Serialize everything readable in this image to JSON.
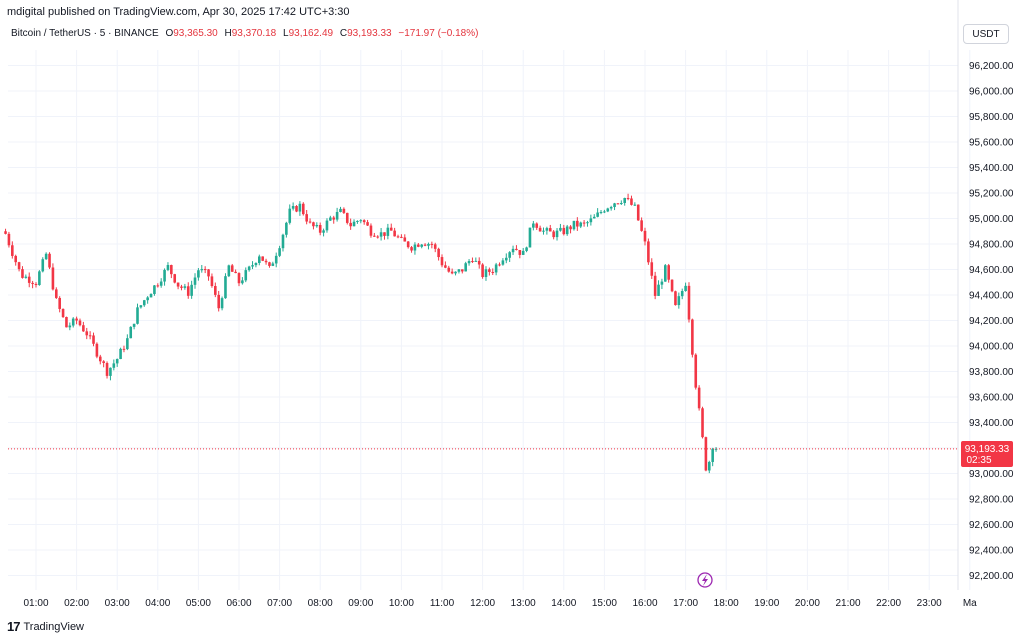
{
  "header": {
    "published_text": "mdigital published on TradingView.com, Apr 30, 2025 17:42 UTC+3:30"
  },
  "symbol": {
    "name": "Bitcoin / TetherUS · 5 · BINANCE",
    "open_label": "O",
    "open": "93,365.30",
    "high_label": "H",
    "high": "93,370.18",
    "low_label": "L",
    "low": "93,162.49",
    "close_label": "C",
    "close": "93,193.33",
    "change": "−171.97 (−0.18%)"
  },
  "currency_button": "USDT",
  "price_badge": {
    "price": "93,193.33",
    "countdown": "02:35",
    "color": "#f23645"
  },
  "footer": {
    "brand": "TradingView",
    "logo_icon": "tradingview-logo-icon"
  },
  "colors": {
    "up": "#22ab94",
    "down": "#f23645",
    "grid": "#f0f3fa"
  },
  "chart_data": {
    "type": "candlestick",
    "title": "",
    "xlabel": "",
    "ylabel": "",
    "ylim": [
      92100,
      96300
    ],
    "y_ticks": [
      96200,
      96000,
      95800,
      95600,
      95400,
      95200,
      95000,
      94800,
      94600,
      94400,
      94200,
      94000,
      93800,
      93600,
      93400,
      93200,
      93000,
      92800,
      92600,
      92400,
      92200
    ],
    "y_tick_labels": [
      "96,200.00",
      "96,000.00",
      "95,800.00",
      "95,600.00",
      "95,400.00",
      "95,200.00",
      "95,000.00",
      "94,800.00",
      "94,600.00",
      "94,400.00",
      "94,200.00",
      "94,000.00",
      "93,800.00",
      "93,600.00",
      "93,400.00",
      "93,200.00",
      "93,000.00",
      "92,800.00",
      "92,600.00",
      "92,400.00",
      "92,200.00"
    ],
    "x_tick_labels": [
      "01:00",
      "02:00",
      "03:00",
      "04:00",
      "05:00",
      "06:00",
      "07:00",
      "08:00",
      "09:00",
      "10:00",
      "11:00",
      "12:00",
      "13:00",
      "14:00",
      "15:00",
      "16:00",
      "17:00",
      "18:00",
      "19:00",
      "20:00",
      "21:00",
      "22:00",
      "23:00",
      "Ma"
    ],
    "x_tick_hours": [
      1,
      2,
      3,
      4,
      5,
      6,
      7,
      8,
      9,
      10,
      11,
      12,
      13,
      14,
      15,
      16,
      17,
      18,
      19,
      20,
      21,
      22,
      23,
      24
    ],
    "last_price": 93193.33,
    "closes": [
      {
        "h": 0.25,
        "c": 94880
      },
      {
        "h": 0.62,
        "c": 94560
      },
      {
        "h": 1.0,
        "c": 94500
      },
      {
        "h": 1.25,
        "c": 94720
      },
      {
        "h": 1.5,
        "c": 94350
      },
      {
        "h": 1.75,
        "c": 94150
      },
      {
        "h": 2.0,
        "c": 94200
      },
      {
        "h": 2.25,
        "c": 94100
      },
      {
        "h": 2.5,
        "c": 93950
      },
      {
        "h": 2.75,
        "c": 93800
      },
      {
        "h": 3.0,
        "c": 93900
      },
      {
        "h": 3.25,
        "c": 94050
      },
      {
        "h": 3.5,
        "c": 94280
      },
      {
        "h": 3.75,
        "c": 94400
      },
      {
        "h": 4.0,
        "c": 94500
      },
      {
        "h": 4.25,
        "c": 94620
      },
      {
        "h": 4.5,
        "c": 94480
      },
      {
        "h": 4.75,
        "c": 94420
      },
      {
        "h": 5.0,
        "c": 94600
      },
      {
        "h": 5.25,
        "c": 94550
      },
      {
        "h": 5.5,
        "c": 94300
      },
      {
        "h": 5.75,
        "c": 94620
      },
      {
        "h": 6.0,
        "c": 94500
      },
      {
        "h": 6.25,
        "c": 94600
      },
      {
        "h": 6.5,
        "c": 94720
      },
      {
        "h": 6.75,
        "c": 94600
      },
      {
        "h": 7.0,
        "c": 94800
      },
      {
        "h": 7.25,
        "c": 95050
      },
      {
        "h": 7.5,
        "c": 95100
      },
      {
        "h": 7.75,
        "c": 94950
      },
      {
        "h": 8.0,
        "c": 94900
      },
      {
        "h": 8.25,
        "c": 95000
      },
      {
        "h": 8.5,
        "c": 95050
      },
      {
        "h": 8.75,
        "c": 94950
      },
      {
        "h": 9.0,
        "c": 95000
      },
      {
        "h": 9.25,
        "c": 94900
      },
      {
        "h": 9.5,
        "c": 94880
      },
      {
        "h": 9.75,
        "c": 94900
      },
      {
        "h": 10.0,
        "c": 94820
      },
      {
        "h": 10.25,
        "c": 94780
      },
      {
        "h": 10.5,
        "c": 94820
      },
      {
        "h": 10.75,
        "c": 94800
      },
      {
        "h": 11.0,
        "c": 94650
      },
      {
        "h": 11.25,
        "c": 94550
      },
      {
        "h": 11.5,
        "c": 94600
      },
      {
        "h": 11.75,
        "c": 94700
      },
      {
        "h": 12.0,
        "c": 94560
      },
      {
        "h": 12.25,
        "c": 94600
      },
      {
        "h": 12.5,
        "c": 94700
      },
      {
        "h": 12.75,
        "c": 94780
      },
      {
        "h": 13.0,
        "c": 94720
      },
      {
        "h": 13.25,
        "c": 94980
      },
      {
        "h": 13.5,
        "c": 94900
      },
      {
        "h": 13.75,
        "c": 94880
      },
      {
        "h": 14.0,
        "c": 94900
      },
      {
        "h": 14.25,
        "c": 94950
      },
      {
        "h": 14.5,
        "c": 94950
      },
      {
        "h": 14.75,
        "c": 95000
      },
      {
        "h": 15.0,
        "c": 95080
      },
      {
        "h": 15.25,
        "c": 95130
      },
      {
        "h": 15.5,
        "c": 95160
      },
      {
        "h": 15.75,
        "c": 95080
      },
      {
        "h": 16.0,
        "c": 94800
      },
      {
        "h": 16.25,
        "c": 94400
      },
      {
        "h": 16.5,
        "c": 94600
      },
      {
        "h": 16.75,
        "c": 94300
      },
      {
        "h": 17.0,
        "c": 94500
      },
      {
        "h": 17.25,
        "c": 93700
      },
      {
        "h": 17.5,
        "c": 93050
      },
      {
        "h": 17.75,
        "c": 93193
      }
    ]
  }
}
